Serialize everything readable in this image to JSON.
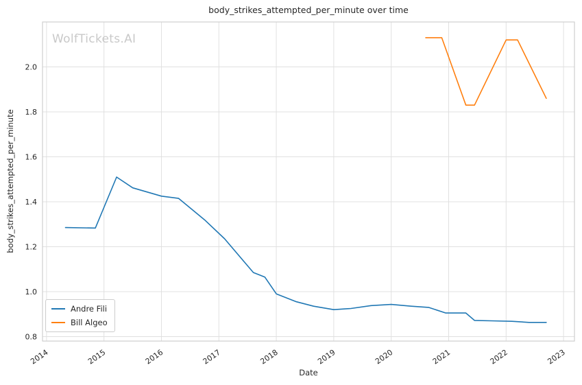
{
  "watermark": "WolfTickets.AI",
  "chart_data": {
    "type": "line",
    "title": "body_strikes_attempted_per_minute over time",
    "xlabel": "Date",
    "ylabel": "body_strikes_attempted_per_minute",
    "x_ticks": [
      2014,
      2015,
      2016,
      2017,
      2018,
      2019,
      2020,
      2021,
      2022,
      2023
    ],
    "y_ticks": [
      0.8,
      1.0,
      1.2,
      1.4,
      1.6,
      1.8,
      2.0
    ],
    "xlim": [
      2013.93,
      2023.19
    ],
    "ylim": [
      0.78,
      2.2
    ],
    "grid": true,
    "legend_position": "lower left",
    "colors": {
      "grid": "#e0e0e0",
      "spine": "#cfcfcf",
      "tick_text": "#262626"
    },
    "series": [
      {
        "name": "Andre Fili",
        "color": "#1f77b4",
        "x": [
          2014.33,
          2014.85,
          2015.22,
          2015.5,
          2016.0,
          2016.3,
          2016.75,
          2017.1,
          2017.45,
          2017.6,
          2017.8,
          2018.0,
          2018.35,
          2018.65,
          2019.0,
          2019.3,
          2019.65,
          2020.0,
          2020.35,
          2020.65,
          2020.95,
          2021.3,
          2021.45,
          2021.75,
          2022.1,
          2022.4,
          2022.7
        ],
        "y": [
          1.285,
          1.283,
          1.51,
          1.462,
          1.425,
          1.415,
          1.32,
          1.235,
          1.13,
          1.085,
          1.065,
          0.99,
          0.955,
          0.935,
          0.92,
          0.925,
          0.938,
          0.943,
          0.935,
          0.93,
          0.905,
          0.905,
          0.872,
          0.87,
          0.868,
          0.863,
          0.863
        ]
      },
      {
        "name": "Bill Algeo",
        "color": "#ff7f0e",
        "x": [
          2020.6,
          2020.88,
          2021.3,
          2021.45,
          2022.0,
          2022.2,
          2022.7
        ],
        "y": [
          2.13,
          2.13,
          1.83,
          1.83,
          2.12,
          2.12,
          1.86
        ]
      }
    ]
  }
}
